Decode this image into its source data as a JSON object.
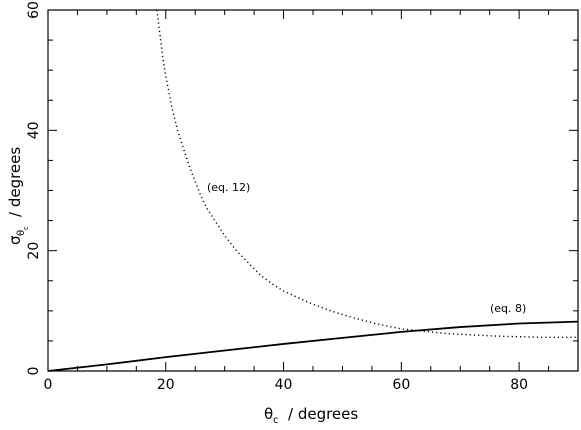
{
  "chart_data": {
    "type": "line",
    "xlim": [
      0,
      90
    ],
    "ylim": [
      0,
      60
    ],
    "x_ticks": [
      0,
      20,
      40,
      60,
      80
    ],
    "y_ticks": [
      0,
      20,
      40,
      60
    ],
    "xlabel": {
      "symbol": "θ",
      "subscript": "c",
      "text": "/ degrees"
    },
    "ylabel": {
      "symbol": "σ",
      "subscript1": "θ",
      "subscript2": "c",
      "text": "/ degrees"
    },
    "grid": false,
    "series": [
      {
        "style": "dotted",
        "annotation": "(eq. 12)",
        "x": [
          18.5,
          19,
          19.5,
          20,
          21,
          22,
          23,
          24,
          25,
          26,
          27,
          28,
          29,
          30,
          32,
          34,
          36,
          38,
          40,
          44,
          48,
          52,
          56,
          60,
          64,
          68,
          72,
          76,
          80,
          84,
          88,
          90
        ],
        "y": [
          60,
          56,
          52,
          49,
          44,
          40,
          37,
          34,
          31.5,
          29,
          27,
          25.5,
          24,
          22.5,
          20,
          18,
          16,
          14.5,
          13.3,
          11.5,
          10,
          8.8,
          7.8,
          7,
          6.6,
          6.2,
          6,
          5.8,
          5.7,
          5.6,
          5.6,
          5.6
        ]
      },
      {
        "style": "solid",
        "annotation": "(eq. 8)",
        "x": [
          0,
          10,
          20,
          30,
          40,
          50,
          60,
          70,
          80,
          90
        ],
        "y": [
          0,
          1.1,
          2.3,
          3.4,
          4.5,
          5.5,
          6.5,
          7.3,
          7.9,
          8.2
        ]
      }
    ]
  }
}
